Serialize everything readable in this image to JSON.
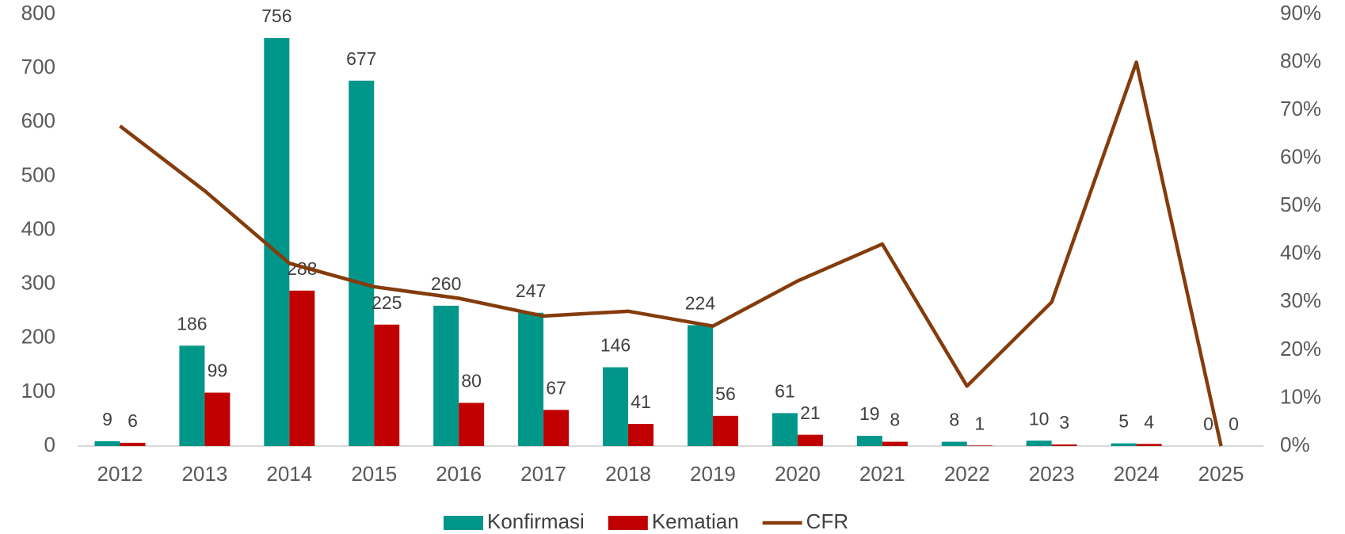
{
  "chart_data": {
    "type": "bar",
    "categories": [
      "2012",
      "2013",
      "2014",
      "2015",
      "2016",
      "2017",
      "2018",
      "2019",
      "2020",
      "2021",
      "2022",
      "2023",
      "2024",
      "2025"
    ],
    "series": [
      {
        "name": "Konfirmasi",
        "color": "#00968a",
        "values": [
          9,
          186,
          756,
          677,
          260,
          247,
          146,
          224,
          61,
          19,
          8,
          10,
          5,
          0
        ]
      },
      {
        "name": "Kematian",
        "color": "#c00000",
        "values": [
          6,
          99,
          288,
          225,
          80,
          67,
          41,
          56,
          21,
          8,
          1,
          3,
          4,
          0
        ]
      },
      {
        "name": "CFR",
        "color": "#843c0c",
        "type": "line",
        "axis": "y2",
        "values": [
          66.7,
          53.2,
          38.1,
          33.2,
          30.8,
          27.1,
          28.1,
          25,
          34.4,
          42.1,
          12.5,
          30,
          80,
          0
        ]
      }
    ],
    "ylim": [
      0,
      800
    ],
    "yticks": [
      0,
      100,
      200,
      300,
      400,
      500,
      600,
      700,
      800
    ],
    "y2lim": [
      0,
      90
    ],
    "y2ticks": [
      {
        "value": 0,
        "label": "0%"
      },
      {
        "value": 10,
        "label": "10%"
      },
      {
        "value": 20,
        "label": "20%"
      },
      {
        "value": 30,
        "label": "30%"
      },
      {
        "value": 40,
        "label": "40%"
      },
      {
        "value": 50,
        "label": "50%"
      },
      {
        "value": 60,
        "label": "60%"
      },
      {
        "value": 70,
        "label": "70%"
      },
      {
        "value": 80,
        "label": "80%"
      },
      {
        "value": 90,
        "label": "90%"
      }
    ],
    "legend": "bottom"
  }
}
